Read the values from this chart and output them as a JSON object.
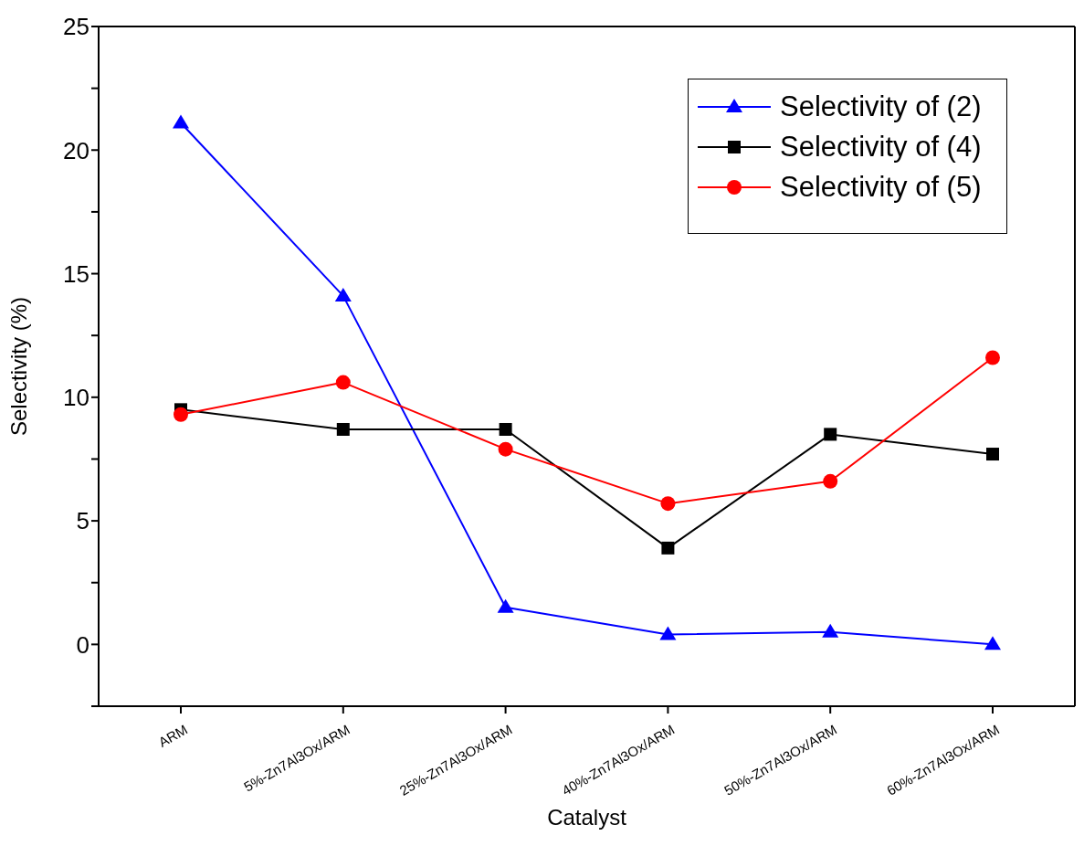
{
  "chart_data": {
    "type": "line",
    "xlabel": "Catalyst",
    "ylabel": "Selectivity (%)",
    "categories": [
      "ARM",
      "5%-Zn7Al3Ox/ARM",
      "25%-Zn7Al3Ox/ARM",
      "40%-Zn7Al3Ox/ARM",
      "50%-Zn7Al3Ox/ARM",
      "60%-Zn7Al3Ox/ARM"
    ],
    "series": [
      {
        "name": "Selectivity of (2)",
        "color": "#0000ff",
        "marker": "triangle",
        "values": [
          21.1,
          14.1,
          1.5,
          0.4,
          0.5,
          0
        ]
      },
      {
        "name": "Selectivity of (4)",
        "color": "#000000",
        "marker": "square",
        "values": [
          9.5,
          8.7,
          8.7,
          3.9,
          8.5,
          7.7
        ]
      },
      {
        "name": "Selectivity of (5)",
        "color": "#ff0000",
        "marker": "circle",
        "values": [
          9.3,
          10.6,
          7.9,
          5.7,
          6.6,
          11.6
        ]
      }
    ],
    "ylim": [
      -2.5,
      25
    ],
    "yticks": [
      {
        "value": -2.5,
        "label": null
      },
      0,
      {
        "value": 2.5,
        "label": null
      },
      5,
      {
        "value": 7.5,
        "label": null
      },
      10,
      {
        "value": 12.5,
        "label": null
      },
      15,
      {
        "value": 17.5,
        "label": null
      },
      20,
      {
        "value": 22.5,
        "label": null
      },
      25
    ],
    "grid": false,
    "legend": "top right"
  }
}
